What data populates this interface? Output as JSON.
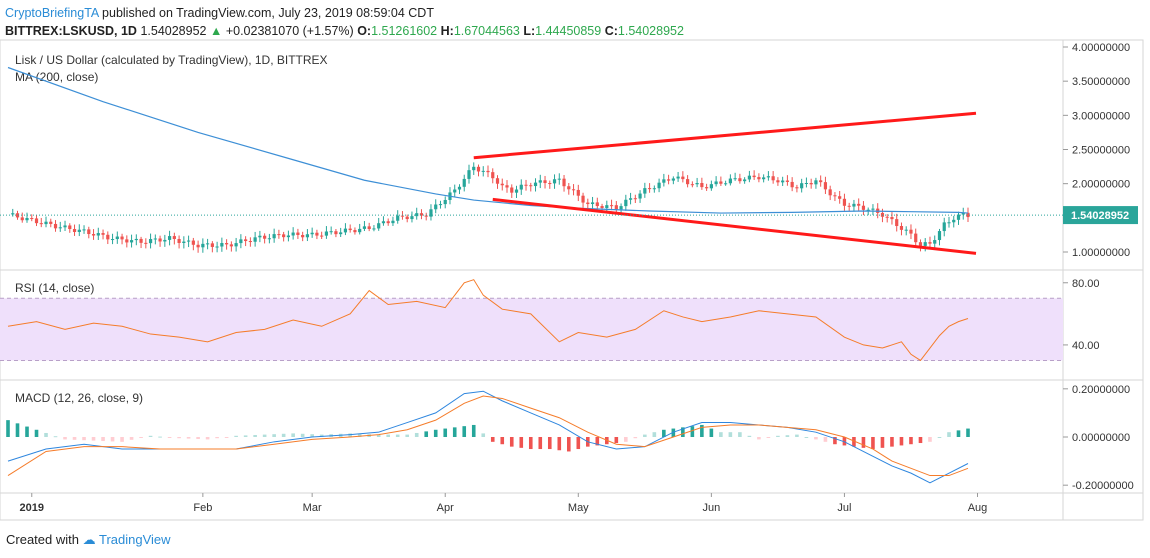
{
  "header": {
    "author": "CryptoBriefingTA",
    "published": "published on TradingView.com, July 23, 2019 08:59:04 CDT",
    "symbol": "BITTREX:LSKUSD, 1D",
    "last": "1.54028952",
    "change": "+0.02381070 (+1.57%)",
    "o_label": "O:",
    "o": "1.51261602",
    "h_label": "H:",
    "h": "1.67044563",
    "l_label": "L:",
    "l": "1.44450859",
    "c_label": "C:",
    "c": "1.54028952"
  },
  "colors": {
    "up": "#26a69a",
    "down": "#ef5350",
    "ma": "#3d8fd6",
    "rsi": "#f57c2a",
    "rsi_band": "#efe0fb",
    "macd": "#2e86de",
    "signal": "#f57c2a",
    "trend": "#ff1a1a",
    "price_tag": "#2aa59a"
  },
  "chart_data": [
    {
      "type": "candlestick",
      "title": "Lisk / US Dollar (calculated by TradingView), 1D, BITTREX",
      "indicator": "MA (200, close)",
      "x_ticks": [
        "2019",
        "Feb",
        "Mar",
        "Apr",
        "May",
        "Jun",
        "Jul",
        "Aug"
      ],
      "y_ticks": [
        "4.00000000",
        "3.50000000",
        "3.00000000",
        "2.50000000",
        "2.00000000",
        "1.50000000",
        "1.00000000"
      ],
      "ylim": [
        0.8,
        4.0
      ],
      "last_price": "1.54028952",
      "close_x": [
        0,
        4,
        10,
        16,
        22,
        28,
        34,
        40,
        46,
        52,
        58,
        64,
        70,
        76,
        82,
        88,
        94,
        98,
        102,
        104,
        106,
        110,
        116,
        122,
        128,
        134,
        140,
        146,
        152,
        158,
        162,
        166,
        170,
        174,
        176,
        180,
        184,
        186,
        188,
        190,
        192,
        194,
        196,
        197,
        199,
        201,
        202
      ],
      "close_y": [
        1.55,
        1.48,
        1.38,
        1.3,
        1.2,
        1.15,
        1.2,
        1.1,
        1.1,
        1.2,
        1.25,
        1.25,
        1.3,
        1.35,
        1.5,
        1.55,
        1.9,
        2.25,
        2.1,
        1.95,
        1.9,
        2.0,
        2.05,
        1.7,
        1.65,
        1.9,
        2.1,
        1.95,
        2.05,
        2.1,
        2.05,
        1.95,
        2.05,
        1.8,
        1.7,
        1.65,
        1.55,
        1.45,
        1.35,
        1.25,
        1.1,
        1.12,
        1.3,
        1.4,
        1.5,
        1.55,
        1.54
      ],
      "ma_x": [
        0,
        20,
        40,
        60,
        75,
        90,
        98,
        110,
        120,
        135,
        150,
        165,
        180,
        190,
        200,
        202
      ],
      "ma_y": [
        3.7,
        3.2,
        2.75,
        2.35,
        2.05,
        1.85,
        1.76,
        1.68,
        1.64,
        1.6,
        1.57,
        1.58,
        1.6,
        1.59,
        1.58,
        1.57
      ],
      "trendlines": [
        {
          "x": [
            98,
            202
          ],
          "y": [
            2.38,
            3.03
          ]
        },
        {
          "x": [
            102,
            202
          ],
          "y": [
            1.77,
            0.98
          ]
        }
      ]
    },
    {
      "type": "line",
      "title": "RSI (14, close)",
      "y_ticks": [
        "80.00",
        "40.00"
      ],
      "band": [
        30,
        70
      ],
      "ylim": [
        20,
        85
      ],
      "x": [
        0,
        6,
        12,
        18,
        24,
        30,
        36,
        42,
        48,
        54,
        60,
        66,
        72,
        76,
        80,
        86,
        92,
        96,
        98,
        100,
        104,
        110,
        116,
        120,
        126,
        132,
        138,
        142,
        146,
        152,
        158,
        164,
        170,
        176,
        180,
        184,
        188,
        190,
        192,
        194,
        196,
        198,
        200,
        202
      ],
      "y": [
        52,
        55,
        50,
        54,
        52,
        47,
        45,
        42,
        48,
        50,
        56,
        52,
        60,
        75,
        66,
        68,
        64,
        80,
        82,
        72,
        63,
        60,
        42,
        48,
        45,
        50,
        62,
        58,
        55,
        58,
        62,
        60,
        58,
        45,
        40,
        38,
        42,
        34,
        30,
        38,
        46,
        52,
        55,
        57
      ]
    },
    {
      "type": "macd",
      "title": "MACD (12, 26, close, 9)",
      "y_ticks": [
        "0.20000000",
        "0.00000000",
        "-0.20000000"
      ],
      "ylim": [
        -0.22,
        0.22
      ],
      "x": [
        0,
        8,
        16,
        24,
        32,
        40,
        48,
        56,
        64,
        72,
        78,
        84,
        90,
        96,
        100,
        104,
        110,
        116,
        122,
        128,
        134,
        140,
        146,
        152,
        158,
        164,
        170,
        176,
        182,
        186,
        190,
        194,
        198,
        202
      ],
      "macd": [
        -0.1,
        -0.05,
        -0.03,
        -0.05,
        -0.05,
        -0.05,
        -0.05,
        -0.02,
        0.0,
        0.01,
        0.02,
        0.06,
        0.1,
        0.18,
        0.19,
        0.15,
        0.1,
        0.05,
        -0.02,
        -0.05,
        -0.04,
        0.02,
        0.06,
        0.06,
        0.05,
        0.04,
        0.02,
        -0.02,
        -0.08,
        -0.12,
        -0.15,
        -0.19,
        -0.15,
        -0.11
      ],
      "signal": [
        -0.16,
        -0.06,
        -0.04,
        -0.04,
        -0.05,
        -0.05,
        -0.05,
        -0.03,
        -0.01,
        0.0,
        0.01,
        0.03,
        0.07,
        0.14,
        0.17,
        0.16,
        0.12,
        0.08,
        0.02,
        -0.03,
        -0.04,
        0.0,
        0.04,
        0.05,
        0.05,
        0.04,
        0.03,
        0.0,
        -0.05,
        -0.1,
        -0.13,
        -0.16,
        -0.16,
        -0.13
      ],
      "histogram_x": [
        0,
        6,
        12,
        18,
        24,
        30,
        36,
        42,
        48,
        54,
        60,
        66,
        72,
        78,
        84,
        90,
        94,
        98,
        102,
        106,
        110,
        114,
        118,
        122,
        126,
        130,
        134,
        138,
        142,
        146,
        150,
        154,
        158,
        162,
        166,
        170,
        174,
        178,
        182,
        186,
        190,
        194,
        198,
        202
      ],
      "histogram": [
        0.07,
        0.03,
        -0.01,
        -0.015,
        -0.02,
        0.005,
        -0.005,
        -0.01,
        0.005,
        0.01,
        0.015,
        0.01,
        0.015,
        0.01,
        0.01,
        0.03,
        0.04,
        0.05,
        -0.02,
        -0.04,
        -0.05,
        -0.05,
        -0.06,
        -0.04,
        -0.03,
        -0.02,
        0.01,
        0.03,
        0.04,
        0.05,
        0.02,
        0.02,
        -0.01,
        0.005,
        0.01,
        -0.01,
        -0.03,
        -0.04,
        -0.05,
        -0.04,
        -0.03,
        -0.02,
        0.02,
        0.035
      ]
    }
  ],
  "footer": {
    "created": "Created with",
    "brand": "TradingView"
  }
}
